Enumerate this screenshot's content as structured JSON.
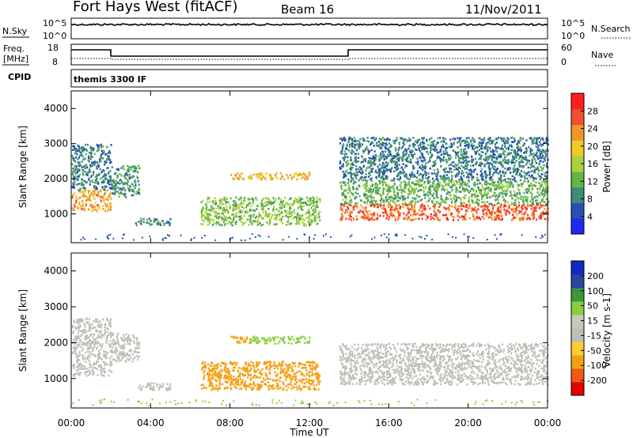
{
  "header": {
    "site": "Fort Hays West (fitACF)",
    "beam": "Beam 16",
    "date": "11/Nov/2011"
  },
  "status_panels": {
    "nsky_label": "N.Sky",
    "nsearch_label": "N.Search",
    "freq_label_1": "Freq.",
    "freq_label_2": "[MHz]",
    "nave_label": "Nave",
    "cpid_label": "CPID",
    "cpid_value": "themis 3300 IF",
    "noise_ticks": [
      "10^5",
      "10^0"
    ],
    "freq_ticks": [
      "18",
      "8"
    ],
    "nave_ticks": [
      "60",
      "0"
    ]
  },
  "time_axis": {
    "label": "Time UT",
    "ticks": [
      "00:00",
      "04:00",
      "08:00",
      "12:00",
      "16:00",
      "20:00",
      "00:00"
    ]
  },
  "chart_data": [
    {
      "type": "heatmap",
      "title": "Power",
      "ylabel": "Slant Range [km]",
      "xlabel": "Time UT",
      "ylim": [
        180,
        4500
      ],
      "yticks": [
        1000,
        2000,
        3000,
        4000
      ],
      "xlim_hours": [
        0,
        24
      ],
      "colorbar": {
        "label": "Power [dB]",
        "ticks": [
          "28",
          "24",
          "20",
          "16",
          "12",
          "8",
          "4"
        ],
        "colors": [
          "#1f28f0",
          "#2850b4",
          "#3c8c78",
          "#64b446",
          "#aad23c",
          "#f0c828",
          "#f09628",
          "#f0502d",
          "#ff1e1e"
        ]
      },
      "regions": [
        {
          "t": [
            0.0,
            2.0
          ],
          "range": [
            1100,
            1700
          ],
          "value": 22
        },
        {
          "t": [
            0.0,
            2.0
          ],
          "range": [
            1700,
            3000
          ],
          "value": 8
        },
        {
          "t": [
            2.0,
            3.4
          ],
          "range": [
            1500,
            2400
          ],
          "value": 10
        },
        {
          "t": [
            3.2,
            5.0
          ],
          "range": [
            700,
            900
          ],
          "value": 10
        },
        {
          "t": [
            8.0,
            12.0
          ],
          "range": [
            2000,
            2200
          ],
          "value": 20
        },
        {
          "t": [
            6.5,
            12.5
          ],
          "range": [
            700,
            1500
          ],
          "value": 14
        },
        {
          "t": [
            13.5,
            24.0
          ],
          "range": [
            850,
            1300
          ],
          "value": 26
        },
        {
          "t": [
            13.5,
            24.0
          ],
          "range": [
            1300,
            2000
          ],
          "value": 12
        },
        {
          "t": [
            13.5,
            24.0
          ],
          "range": [
            2000,
            3200
          ],
          "value": 8
        }
      ]
    },
    {
      "type": "heatmap",
      "title": "Velocity",
      "ylabel": "Slant Range [km]",
      "xlabel": "Time UT",
      "ylim": [
        180,
        4500
      ],
      "yticks": [
        1000,
        2000,
        3000,
        4000
      ],
      "xlim_hours": [
        0,
        24
      ],
      "colorbar": {
        "label": "Velocity [m s-1]",
        "ticks": [
          "200",
          "100",
          "50",
          "15",
          "-15",
          "-50",
          "-100",
          "-200"
        ],
        "colors": [
          "#e60000",
          "#f05a14",
          "#f5a014",
          "#ffcc33",
          "#bebeb4",
          "#c8c8be",
          "#8ccd3c",
          "#3c963c",
          "#2846a0",
          "#1428c8"
        ]
      },
      "regions": [
        {
          "t": [
            0.0,
            2.0
          ],
          "range": [
            1100,
            2700
          ],
          "value": 0
        },
        {
          "t": [
            2.0,
            3.4
          ],
          "range": [
            1500,
            2300
          ],
          "value": 0
        },
        {
          "t": [
            3.2,
            5.0
          ],
          "range": [
            700,
            900
          ],
          "value": 0
        },
        {
          "t": [
            8.0,
            9.0
          ],
          "range": [
            2000,
            2200
          ],
          "value": -80
        },
        {
          "t": [
            9.0,
            12.0
          ],
          "range": [
            2000,
            2200
          ],
          "value": 30
        },
        {
          "t": [
            6.5,
            12.5
          ],
          "range": [
            700,
            1500
          ],
          "value": -40
        },
        {
          "t": [
            13.5,
            24.0
          ],
          "range": [
            850,
            2000
          ],
          "value": 0
        }
      ]
    }
  ]
}
